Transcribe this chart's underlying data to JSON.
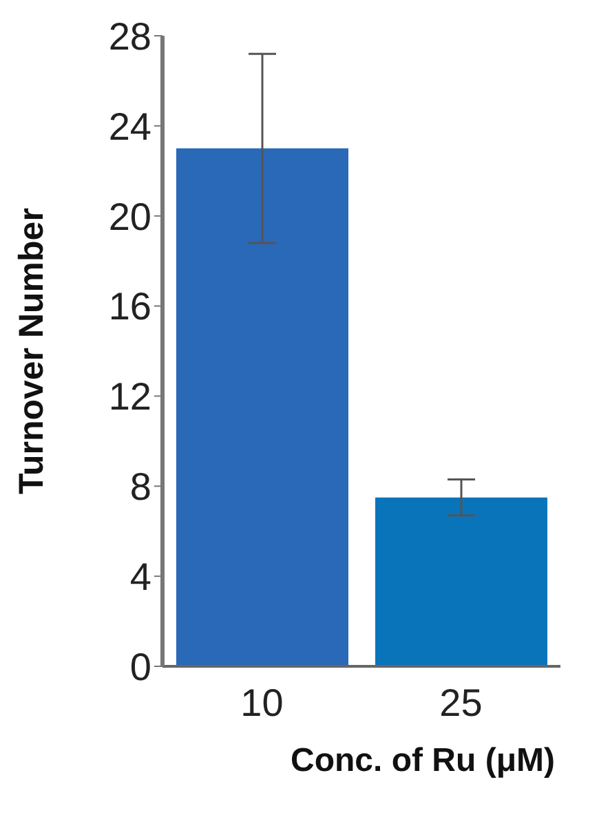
{
  "chart_data": {
    "type": "bar",
    "xlabel": "Conc. of Ru (μM)",
    "ylabel": "Turnover Number",
    "categories": [
      "10",
      "25"
    ],
    "values": [
      23,
      7.5
    ],
    "errors": [
      4.2,
      0.8
    ],
    "colors": [
      "#2a68b8",
      "#0a74bb"
    ],
    "ylim": [
      0,
      28
    ],
    "yticks": [
      0,
      4,
      8,
      12,
      16,
      20,
      24,
      28
    ],
    "grid": false,
    "legend": false
  }
}
